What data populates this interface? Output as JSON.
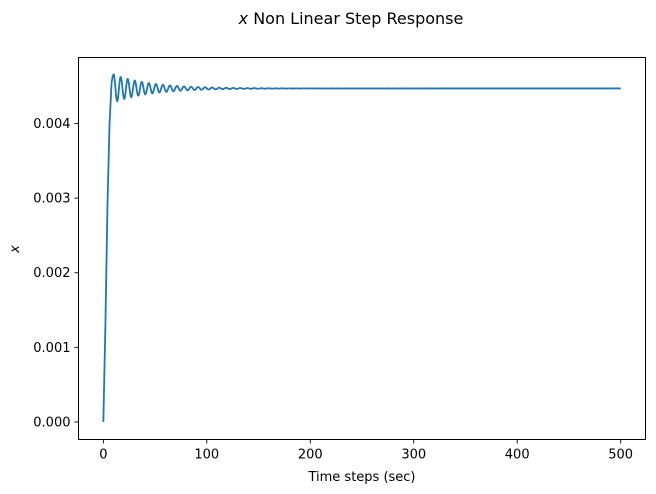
{
  "chart_data": {
    "type": "line",
    "title_var": "x",
    "title_text": " Non Linear Step Response",
    "xlabel": "Time steps (sec)",
    "ylabel": "x",
    "xlim": [
      -24,
      524
    ],
    "ylim": [
      -0.000235,
      0.004885
    ],
    "xticks": [
      0,
      100,
      200,
      300,
      400,
      500
    ],
    "yticks": [
      0.0,
      0.001,
      0.002,
      0.003,
      0.004
    ],
    "ytick_labels": [
      "0.000",
      "0.001",
      "0.002",
      "0.003",
      "0.004"
    ],
    "xtick_labels": [
      "0",
      "100",
      "200",
      "300",
      "400",
      "500"
    ],
    "grid": false,
    "series": [
      {
        "color": "#1f77b4",
        "model": {
          "t_end": 500,
          "steady_value": 0.00447,
          "rise": [
            [
              0,
              0.0
            ],
            [
              2,
              0.0013
            ],
            [
              4,
              0.0029
            ],
            [
              6,
              0.004
            ],
            [
              8,
              0.00455
            ],
            [
              9,
              0.00463
            ]
          ],
          "osc_start": 10,
          "osc_amp0": 0.00019,
          "osc_decay": 0.028,
          "osc_period": 6.8
        }
      }
    ]
  }
}
